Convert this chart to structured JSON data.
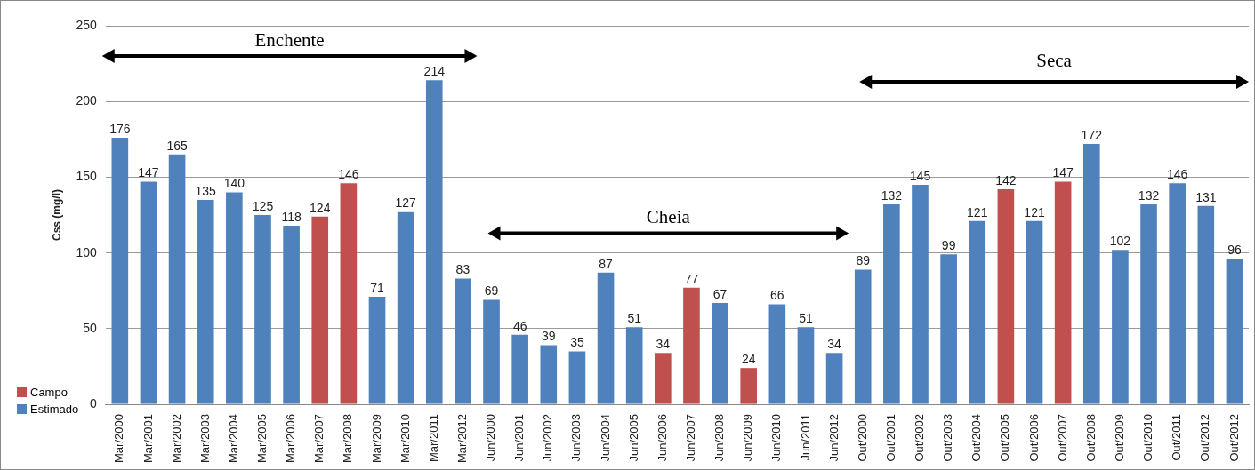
{
  "chart_data": {
    "type": "bar",
    "ylabel": "Css (mg/l)",
    "categories": [
      "Mar/2000",
      "Mar/2001",
      "Mar/2002",
      "Mar/2003",
      "Mar/2004",
      "Mar/2005",
      "Mar/2006",
      "Mar/2007",
      "Mar/2008",
      "Mar/2009",
      "Mar/2010",
      "Mar/2011",
      "Mar/2012",
      "Jun/2000",
      "Jun/2001",
      "Jun/2002",
      "Jun/2003",
      "Jun/2004",
      "Jun/2005",
      "Jun/2006",
      "Jun/2007",
      "Jun/2008",
      "Jun/2009",
      "Jun/2010",
      "Jun/2011",
      "Jun/2012",
      "Out/2000",
      "Out/2001",
      "Out/2002",
      "Out/2003",
      "Out/2004",
      "Out/2005",
      "Out/2006",
      "Out/2007",
      "Out/2008",
      "Out/2009",
      "Out/2010",
      "Out/2011",
      "Out/2012",
      "Out/2012"
    ],
    "series": [
      {
        "name": "Campo",
        "color": "#c0504d",
        "values": [
          null,
          null,
          null,
          null,
          null,
          null,
          null,
          124,
          146,
          null,
          null,
          null,
          null,
          null,
          null,
          null,
          null,
          null,
          null,
          34,
          77,
          null,
          24,
          null,
          null,
          null,
          null,
          null,
          null,
          null,
          null,
          142,
          null,
          147,
          null,
          null,
          null,
          null,
          null,
          null
        ]
      },
      {
        "name": "Estimado",
        "color": "#4f81bd",
        "values": [
          176,
          147,
          165,
          135,
          140,
          125,
          118,
          null,
          null,
          71,
          127,
          214,
          83,
          69,
          46,
          39,
          35,
          87,
          51,
          null,
          null,
          67,
          null,
          66,
          51,
          34,
          89,
          132,
          145,
          99,
          121,
          null,
          121,
          null,
          172,
          102,
          132,
          146,
          131,
          96
        ]
      }
    ],
    "ylim": [
      0,
      250
    ],
    "yticks": [
      0,
      50,
      100,
      150,
      200,
      250
    ],
    "grid": "y",
    "legend": "bottom left",
    "data_labels": true,
    "annotations": [
      "Enchente",
      "Cheia",
      "Seca"
    ]
  }
}
